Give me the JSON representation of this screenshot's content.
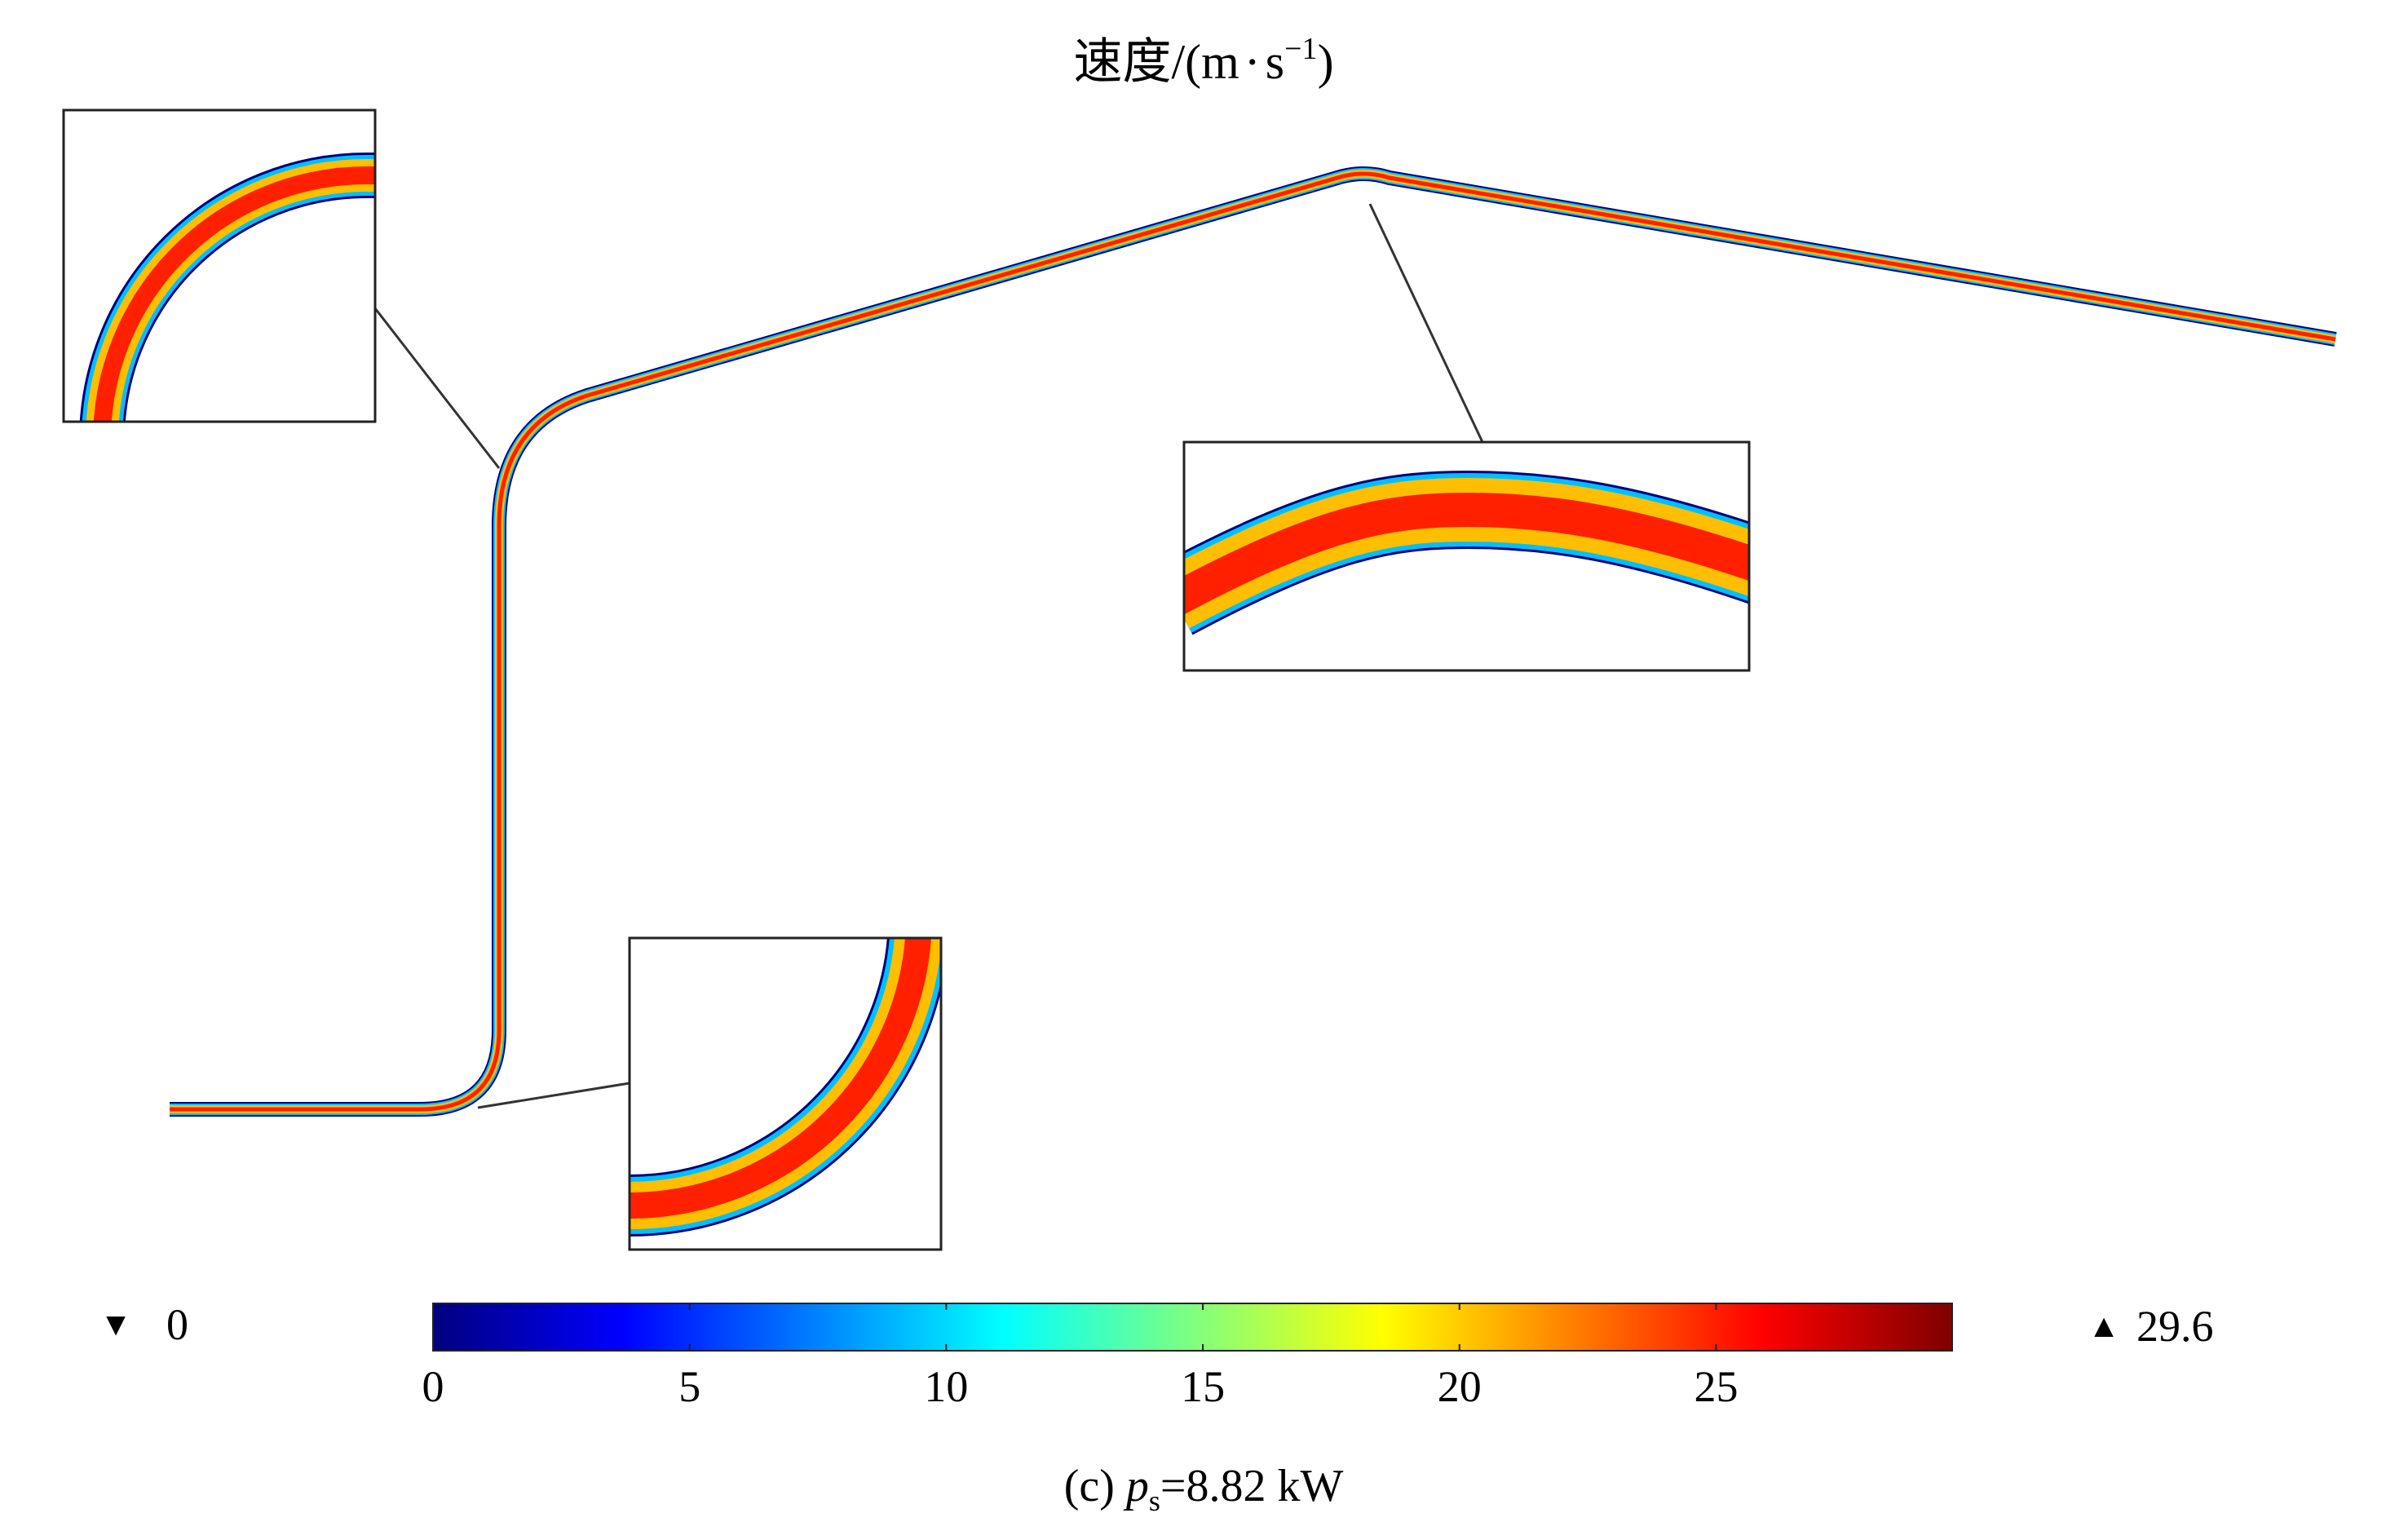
{
  "title": {
    "main": "速度/(m",
    "dot": "·",
    "unit_s": "s",
    "exponent": "−1",
    "close": ")"
  },
  "colorbar": {
    "min_marker_symbol": "▼",
    "min_label": "0",
    "max_marker_symbol": "▲",
    "max_label": "29.6",
    "ticks": [
      "0",
      "5",
      "10",
      "15",
      "20",
      "25"
    ],
    "tick_values": [
      0,
      5,
      10,
      15,
      20,
      25
    ],
    "range": [
      0,
      29.6
    ],
    "colors": [
      "#00007f",
      "#0000ff",
      "#007fff",
      "#00ffff",
      "#7fff7f",
      "#ffff00",
      "#ff7f00",
      "#ff0000",
      "#7f0000"
    ]
  },
  "caption": {
    "prefix": "(c) ",
    "var": "p",
    "subscript": "s",
    "value": "=8.82 kW"
  },
  "flow_colors": {
    "wall": "#00007f",
    "edge": "#00bfff",
    "mid": "#ffbf00",
    "core": "#ff2000"
  }
}
